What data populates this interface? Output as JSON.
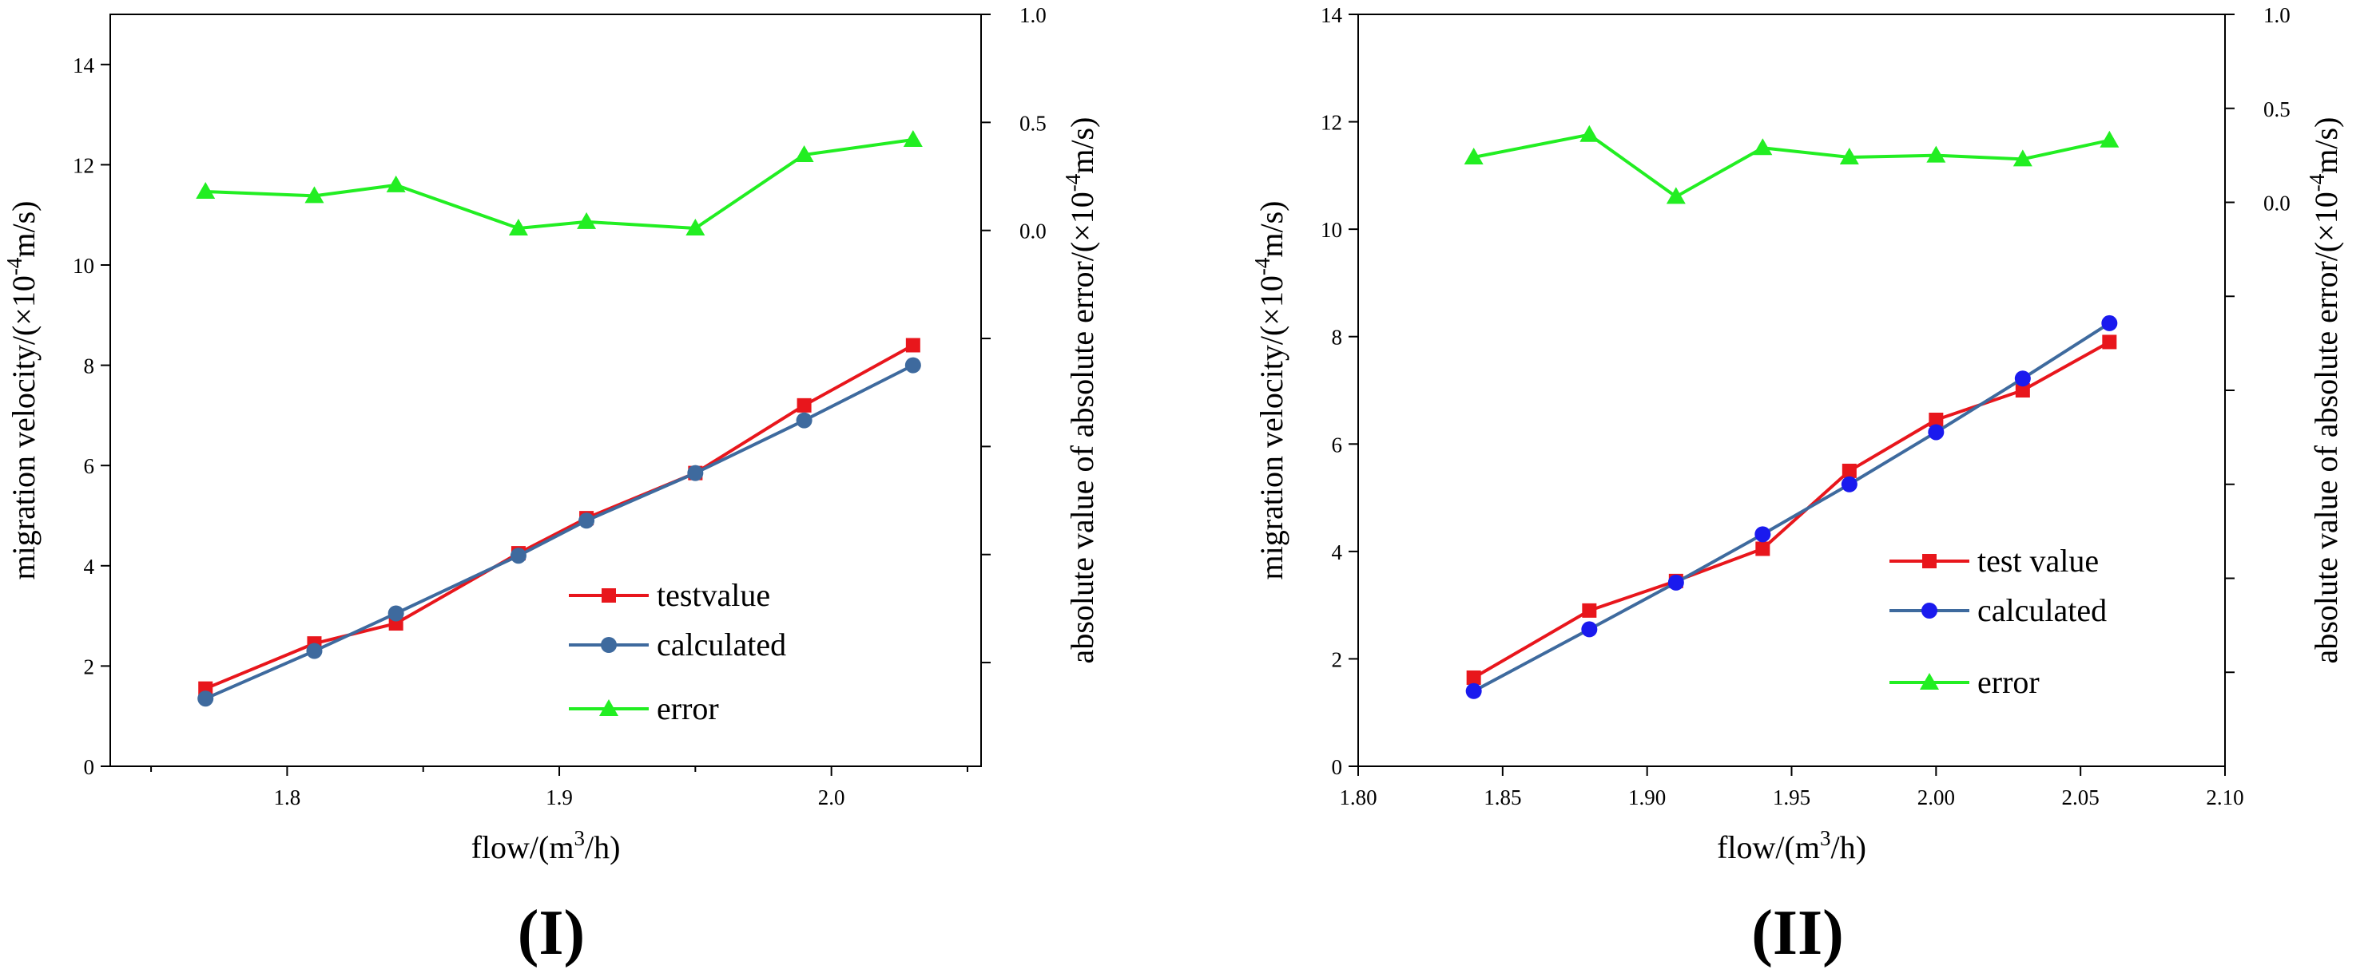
{
  "chart_data": [
    {
      "type": "line",
      "panel_label": "(I)",
      "xlabel": "flow/(m³/h)",
      "xlabel_parts": {
        "before_sup": "flow/(m",
        "sup": "3",
        "after_sup": "/h)"
      },
      "ylabel": "migration velocity/(×10⁻⁴m/s)",
      "ylabel_parts": {
        "before_sup": "migration velocity/(×10",
        "sup": "-4",
        "after_sup": "m/s)"
      },
      "y2label": "absolute value of absolute error/(×10⁻⁴m/s)",
      "y2label_parts": {
        "before_sup": "absolute value of absolute error/(×10",
        "sup": "-4",
        "after_sup": "m/s)"
      },
      "xlim": [
        1.735,
        2.055
      ],
      "ylim": [
        0,
        15
      ],
      "y2lim": [
        -2.48,
        1.0
      ],
      "xticks": [
        1.8,
        1.9,
        2.0
      ],
      "xtick_labels": [
        "1.8",
        "1.9",
        "2.0"
      ],
      "xticks_minor": [
        1.75,
        1.85,
        1.95,
        2.05
      ],
      "yticks": [
        0,
        2,
        4,
        6,
        8,
        10,
        12,
        14
      ],
      "ytick_labels": [
        "0",
        "2",
        "4",
        "6",
        "8",
        "10",
        "12",
        "14"
      ],
      "y2ticks": [
        0.0,
        0.5,
        1.0
      ],
      "y2tick_labels": [
        "0.0",
        "0.5",
        "1.0"
      ],
      "y2ticks_unlabeled": [
        -0.5,
        -1.0,
        -1.5,
        -2.0
      ],
      "legend_position": "lower-right",
      "grid": false,
      "series": [
        {
          "name": "testvalue",
          "color": "#e8161c",
          "marker": "square",
          "axis": "left",
          "x": [
            1.77,
            1.81,
            1.84,
            1.885,
            1.91,
            1.95,
            1.99,
            2.03
          ],
          "values": [
            1.55,
            2.45,
            2.85,
            4.25,
            4.95,
            5.85,
            7.2,
            8.4
          ]
        },
        {
          "name": "calculated",
          "color": "#3e6a9e",
          "marker": "circle",
          "axis": "left",
          "x": [
            1.77,
            1.81,
            1.84,
            1.885,
            1.91,
            1.95,
            1.99,
            2.03
          ],
          "values": [
            1.35,
            2.3,
            3.05,
            4.2,
            4.9,
            5.85,
            6.9,
            8.0
          ]
        },
        {
          "name": "error",
          "color": "#22ee22",
          "marker": "triangle",
          "axis": "right",
          "x": [
            1.77,
            1.81,
            1.84,
            1.885,
            1.91,
            1.95,
            1.99,
            2.03
          ],
          "values": [
            0.18,
            0.16,
            0.21,
            0.01,
            0.04,
            0.01,
            0.35,
            0.42
          ]
        }
      ]
    },
    {
      "type": "line",
      "panel_label": "(II)",
      "xlabel": "flow/(m³/h)",
      "xlabel_parts": {
        "before_sup": "flow/(m",
        "sup": "3",
        "after_sup": "/h)"
      },
      "ylabel": "migration velocity/(×10⁻⁴m/s)",
      "ylabel_parts": {
        "before_sup": "migration velocity/(×10",
        "sup": "-4",
        "after_sup": "m/s)"
      },
      "y2label": "absolute value of absolute error/(×10⁻⁴m/s)",
      "y2label_parts": {
        "before_sup": "absolute value of absolute error/(×10",
        "sup": "-4",
        "after_sup": "m/s)"
      },
      "xlim": [
        1.8,
        2.1
      ],
      "ylim": [
        0,
        14
      ],
      "y2lim": [
        -3.0,
        1.0
      ],
      "xticks": [
        1.8,
        1.85,
        1.9,
        1.95,
        2.0,
        2.05,
        2.1
      ],
      "xtick_labels": [
        "1.80",
        "1.85",
        "1.90",
        "1.95",
        "2.00",
        "2.05",
        "2.10"
      ],
      "xticks_minor": [],
      "yticks": [
        0,
        2,
        4,
        6,
        8,
        10,
        12,
        14
      ],
      "ytick_labels": [
        "0",
        "2",
        "4",
        "6",
        "8",
        "10",
        "12",
        "14"
      ],
      "y2ticks": [
        0.0,
        0.5,
        1.0
      ],
      "y2tick_labels": [
        "0.0",
        "0.5",
        "1.0"
      ],
      "y2ticks_unlabeled": [
        -0.5,
        -1.0,
        -1.5,
        -2.0,
        -2.5
      ],
      "legend_position": "lower-right",
      "grid": false,
      "series": [
        {
          "name": "test value",
          "color": "#e8161c",
          "marker": "square",
          "axis": "left",
          "x": [
            1.84,
            1.88,
            1.91,
            1.94,
            1.97,
            2.0,
            2.03,
            2.06
          ],
          "values": [
            1.65,
            2.9,
            3.45,
            4.05,
            5.5,
            6.45,
            7.0,
            7.9
          ]
        },
        {
          "name": "calculated",
          "color": "#3e6a9e",
          "marker_color": "#1a1aee",
          "marker": "circle",
          "axis": "left",
          "x": [
            1.84,
            1.88,
            1.91,
            1.94,
            1.97,
            2.0,
            2.03,
            2.06
          ],
          "values": [
            1.4,
            2.55,
            3.42,
            4.32,
            5.25,
            6.22,
            7.22,
            8.25
          ]
        },
        {
          "name": "error",
          "color": "#22ee22",
          "marker": "triangle",
          "axis": "right",
          "x": [
            1.84,
            1.88,
            1.91,
            1.94,
            1.97,
            2.0,
            2.03,
            2.06
          ],
          "values": [
            0.24,
            0.36,
            0.03,
            0.29,
            0.24,
            0.25,
            0.23,
            0.33
          ]
        }
      ]
    }
  ]
}
